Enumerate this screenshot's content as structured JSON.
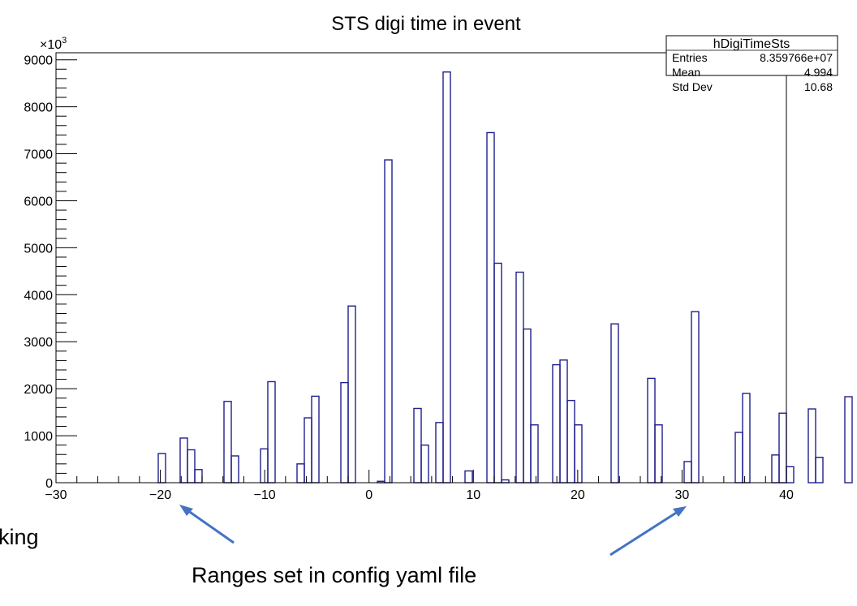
{
  "chart_data": {
    "type": "bar",
    "title": "STS digi time in event",
    "y_multiplier": "×10",
    "y_multiplier_exp": "3",
    "xlim": [
      -30,
      40
    ],
    "ylim": [
      0,
      9150
    ],
    "x_major_ticks": [
      -30,
      -20,
      -10,
      0,
      10,
      20,
      30,
      40
    ],
    "x_tick_labels": [
      "−30",
      "−20",
      "−10",
      "0",
      "10",
      "20",
      "30",
      "40"
    ],
    "y_major_ticks": [
      0,
      1000,
      2000,
      3000,
      4000,
      5000,
      6000,
      7000,
      8000,
      9000
    ],
    "y_tick_labels": [
      "0",
      "1000",
      "2000",
      "3000",
      "4000",
      "5000",
      "6000",
      "7000",
      "8000",
      "9000"
    ],
    "bin_width": 0.7,
    "bin_edges_start": -30,
    "values": [
      0,
      0,
      0,
      0,
      0,
      0,
      0,
      0,
      0,
      0,
      0,
      0,
      0,
      0,
      620,
      0,
      0,
      950,
      700,
      280,
      0,
      0,
      0,
      1730,
      570,
      0,
      0,
      0,
      720,
      2150,
      0,
      0,
      0,
      400,
      1380,
      1840,
      0,
      0,
      0,
      2130,
      3760,
      0,
      0,
      0,
      30,
      6870,
      0,
      0,
      0,
      1580,
      800,
      0,
      1280,
      8740,
      0,
      0,
      250,
      0,
      0,
      7450,
      4670,
      60,
      0,
      4480,
      3270,
      1230,
      0,
      0,
      2510,
      2610,
      1750,
      1230,
      0,
      0,
      0,
      0,
      3380,
      0,
      0,
      0,
      0,
      2220,
      1230,
      0,
      0,
      0,
      450,
      3640,
      0,
      0,
      0,
      0,
      0,
      1070,
      1900,
      0,
      0,
      0,
      590,
      1480,
      340,
      0,
      0,
      1570,
      540,
      0,
      0,
      0,
      1830,
      0,
      0,
      0,
      0,
      0,
      0,
      0,
      0,
      0,
      0,
      0,
      0,
      0,
      0,
      0,
      0,
      0,
      0,
      0,
      0,
      0,
      0,
      0,
      0,
      0,
      0,
      0,
      0,
      0,
      0,
      0,
      0,
      0,
      0,
      0,
      0
    ],
    "bar_color": "#1f1f8f",
    "stats": {
      "name": "hDigiTimeSts",
      "rows": [
        {
          "label": "Entries",
          "value": "8.359766e+07"
        },
        {
          "label": "Mean",
          "value": "4.994"
        },
        {
          "label": "Std Dev",
          "value": "10.68"
        }
      ]
    }
  },
  "annotations": {
    "ranges_text": "Ranges set in config yaml file",
    "left_text": "king",
    "arrow_color": "#4472c4"
  }
}
